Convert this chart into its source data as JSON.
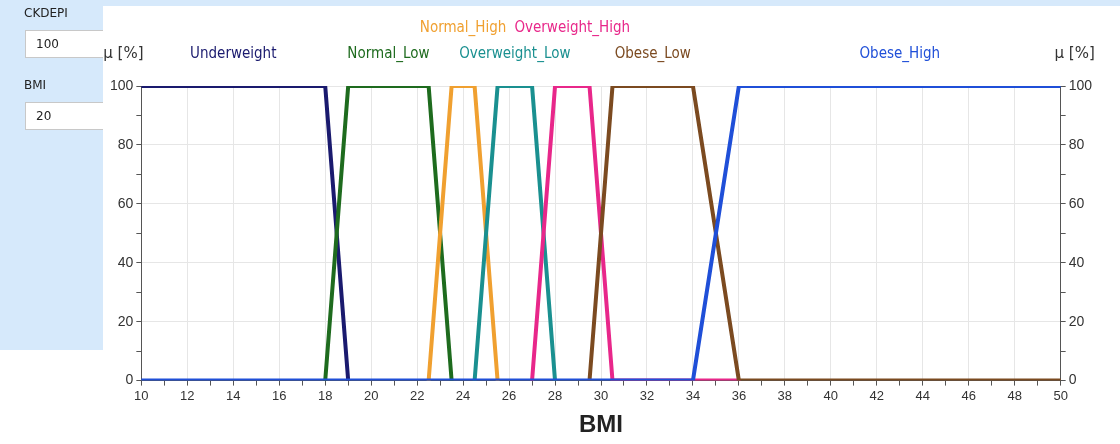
{
  "chart_data": {
    "type": "line",
    "xlabel": "BMI",
    "ylabel": "μ [%]",
    "y2label": "μ [%]",
    "xlim": [
      10,
      50
    ],
    "xticks": [
      10,
      12,
      14,
      16,
      18,
      20,
      22,
      24,
      26,
      28,
      30,
      32,
      34,
      36,
      38,
      40,
      42,
      44,
      46,
      48,
      50
    ],
    "ylim": [
      0,
      100
    ],
    "yticks": [
      0,
      20,
      40,
      60,
      80,
      100
    ],
    "y2lim": [
      0,
      100
    ],
    "y2ticks": [
      0,
      20,
      40,
      60,
      80,
      100
    ],
    "grid": true,
    "legend": false,
    "marker": "none",
    "line_style": "solid",
    "annotations": [
      "CKDEPI",
      "100",
      "BMI",
      "20"
    ],
    "series": [
      {
        "name": "Underweight",
        "color": "#1a1a6e",
        "x": [
          10,
          18,
          19
        ],
        "values": [
          100,
          100,
          0
        ]
      },
      {
        "name": "Normal_Low",
        "color": "#1e6b1e",
        "x": [
          18,
          19,
          22.5,
          23.5
        ],
        "values": [
          0,
          100,
          100,
          0
        ]
      },
      {
        "name": "Normal_High",
        "color": "#f0a030",
        "x": [
          22.5,
          23.5,
          24.5,
          25.5
        ],
        "values": [
          0,
          100,
          100,
          0
        ]
      },
      {
        "name": "Overweight_Low",
        "color": "#1a9090",
        "x": [
          24.5,
          25.5,
          27,
          28
        ],
        "values": [
          0,
          100,
          100,
          0
        ]
      },
      {
        "name": "Overweight_High",
        "color": "#e8278a",
        "x": [
          27,
          28,
          29.5,
          30.5,
          34,
          36
        ],
        "values": [
          0,
          100,
          100,
          0,
          0,
          0
        ]
      },
      {
        "name": "Obese_Low",
        "color": "#7b4a20",
        "x": [
          29.5,
          30.5,
          34,
          36,
          50
        ],
        "values": [
          0,
          100,
          100,
          0,
          0
        ]
      },
      {
        "name": "Obese_High",
        "color": "#1f4fd8",
        "x": [
          10,
          34,
          36,
          50
        ],
        "values": [
          0,
          0,
          100,
          100
        ]
      }
    ]
  }
}
